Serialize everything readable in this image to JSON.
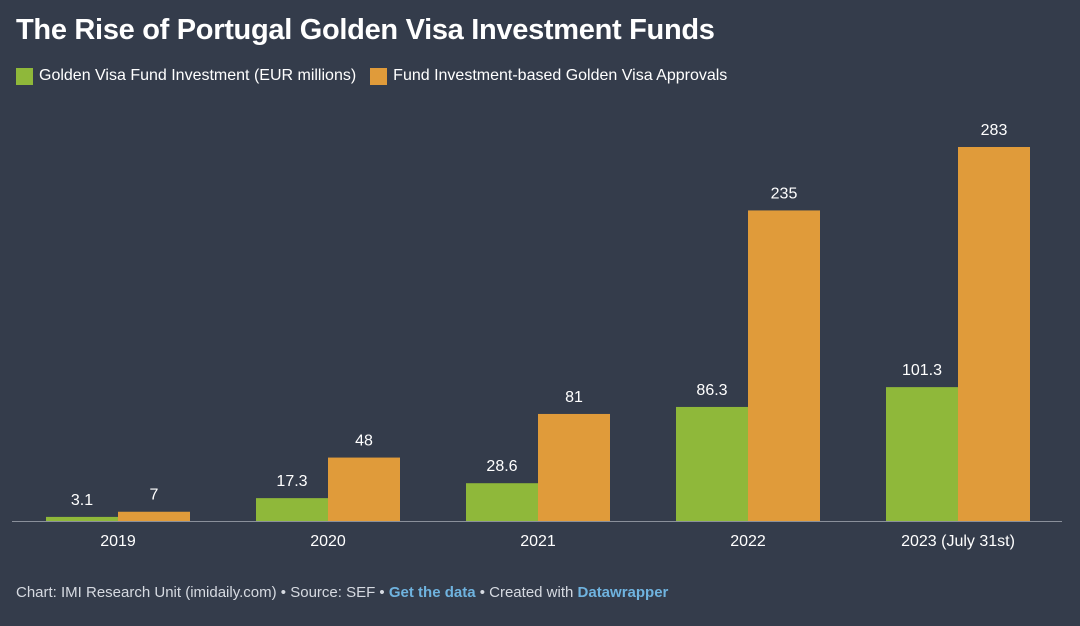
{
  "title": "The Rise of Portugal Golden Visa Investment Funds",
  "colors": {
    "background": "#343c4b",
    "investment": "#8fb83a",
    "approvals": "#e09b3a",
    "link": "#6fb3df"
  },
  "footer": {
    "chart_text": "Chart: IMI Research Unit (imidaily.com)",
    "sep1": " • ",
    "source_text": "Source: SEF",
    "sep2": " • ",
    "get_data_link": "Get the data",
    "sep3": " • ",
    "created_text": "Created with ",
    "datawrapper_link": "Datawrapper"
  },
  "chart_data": {
    "type": "bar",
    "categories": [
      "2019",
      "2020",
      "2021",
      "2022",
      "2023 (July 31st)"
    ],
    "series": [
      {
        "name": "Golden Visa Fund Investment (EUR millions)",
        "values": [
          3.1,
          17.3,
          28.6,
          86.3,
          101.3
        ],
        "labels": [
          "3.1",
          "17.3",
          "28.6",
          "86.3",
          "101.3"
        ],
        "color": "#8fb83a"
      },
      {
        "name": "Fund Investment-based Golden Visa Approvals",
        "values": [
          7,
          48,
          81,
          235,
          283
        ],
        "labels": [
          "7",
          "48",
          "81",
          "235",
          "283"
        ],
        "color": "#e09b3a"
      }
    ],
    "ylim": [
      0,
      283
    ],
    "grid": false,
    "legend": "top-left"
  }
}
